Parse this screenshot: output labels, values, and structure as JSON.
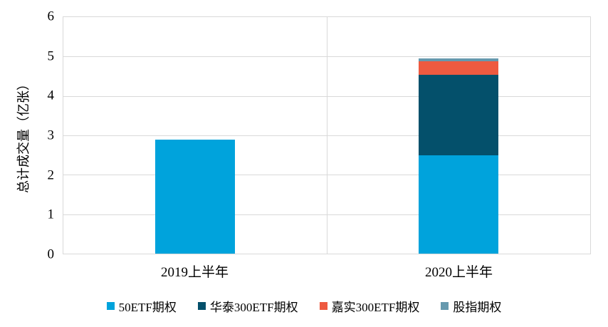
{
  "colors": {
    "grid": "#D9D9D9",
    "plot_border": "#D9D9D9",
    "text": "#000000",
    "background": "#FFFFFF"
  },
  "y_axis": {
    "title": "总计成交量（亿张）",
    "ticks": [
      0,
      1,
      2,
      3,
      4,
      5,
      6
    ]
  },
  "chart_data": {
    "type": "bar",
    "stacked": true,
    "title": "",
    "xlabel": "",
    "ylabel": "总计成交量（亿张）",
    "ylim": [
      0,
      6
    ],
    "grid": true,
    "legend_position": "bottom",
    "categories": [
      "2019上半年",
      "2020上半年"
    ],
    "category_centers_pct": [
      25,
      75
    ],
    "series": [
      {
        "name": "50ETF期权",
        "color": "#00A3DC",
        "values": [
          2.9,
          2.49
        ]
      },
      {
        "name": "华泰300ETF期权",
        "color": "#04506B",
        "values": [
          0,
          2.05
        ]
      },
      {
        "name": "嘉实300ETF期权",
        "color": "#EE5A40",
        "values": [
          0,
          0.34
        ]
      },
      {
        "name": "股指期权",
        "color": "#6699AE",
        "values": [
          0,
          0.08
        ]
      }
    ]
  }
}
